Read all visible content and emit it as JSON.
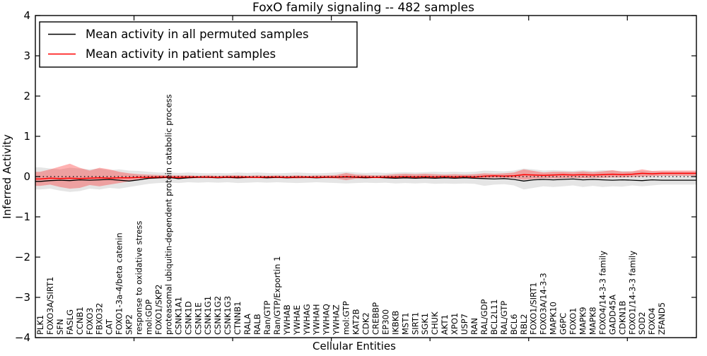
{
  "figure": {
    "kind": "matplotlib-style line plot with confidence bands"
  },
  "chart_data": {
    "type": "line",
    "title": "FoxO family signaling -- 482 samples",
    "xlabel": "Cellular Entities",
    "ylabel": "Inferred Activity",
    "ylim": [
      -4,
      4
    ],
    "xlim": [
      0,
      67
    ],
    "yticks": [
      -4,
      -3,
      -2,
      -1,
      0,
      1,
      2,
      3,
      4
    ],
    "xticks_major": [
      10,
      20,
      30,
      40,
      50,
      60
    ],
    "grid": false,
    "legend_position": "upper left",
    "zero_line_style": "dotted black at y=0",
    "categories": [
      "PLK1",
      "FOXO3A/SIRT1",
      "SFN",
      "FASLG",
      "CCNB1",
      "FOXO3",
      "FBXO32",
      "CAT",
      "FOXO1-3a-4/beta catenin",
      "SKP2",
      "response to oxidative stress",
      "mol:GDP",
      "FOXO1/SKP2",
      "proteasomal ubiquitin-dependent protein catabolic process",
      "CSNK1A1",
      "CSNK1D",
      "CSNK1E",
      "CSNK1G1",
      "CSNK1G2",
      "CSNK1G3",
      "CTNNB1",
      "RALA",
      "RALB",
      "Ran/GTP",
      "Ran/GTP/Exportin 1",
      "YWHAB",
      "YWHAE",
      "YWHAG",
      "YWHAH",
      "YWHAQ",
      "YWHAZ",
      "mol:GTP",
      "KAT2B",
      "CDK2",
      "CREBBP",
      "EP300",
      "IKBKB",
      "MST1",
      "SIRT1",
      "SGK1",
      "CHUK",
      "AKT1",
      "XPO1",
      "USP7",
      "RAN",
      "RAL/GDP",
      "BCL2L11",
      "RAL/GTP",
      "BCL6",
      "RBL2",
      "FOXO1/SIRT1",
      "FOXO3A/14-3-3",
      "MAPK10",
      "G6PC",
      "FOXO1",
      "MAPK9",
      "MAPK8",
      "FOXO4/14-3-3 family",
      "GADD45A",
      "CDKN1B",
      "FOXO1/14-3-3 family",
      "SOD2",
      "FOXO4",
      "ZFAND5"
    ],
    "series": [
      {
        "name": "Mean activity in all permuted samples",
        "color": "#000000",
        "band_color": "rgba(0,0,0,0.10)",
        "values": [
          -0.12,
          -0.1,
          -0.09,
          -0.1,
          -0.08,
          -0.09,
          -0.08,
          -0.07,
          -0.09,
          -0.11,
          -0.08,
          -0.04,
          -0.03,
          -0.02,
          -0.05,
          -0.03,
          -0.02,
          -0.02,
          -0.03,
          -0.02,
          -0.03,
          -0.02,
          -0.02,
          -0.03,
          -0.02,
          -0.03,
          -0.02,
          -0.02,
          -0.03,
          -0.02,
          -0.02,
          -0.01,
          -0.02,
          -0.03,
          -0.02,
          -0.03,
          -0.04,
          -0.03,
          -0.04,
          -0.03,
          -0.04,
          -0.03,
          -0.04,
          -0.03,
          -0.04,
          -0.05,
          -0.06,
          -0.05,
          -0.07,
          -0.11,
          -0.08,
          -0.07,
          -0.08,
          -0.07,
          -0.06,
          -0.08,
          -0.07,
          -0.08,
          -0.09,
          -0.08,
          -0.09,
          -0.1,
          -0.08,
          -0.09
        ],
        "band_upper": [
          0.23,
          0.2,
          0.18,
          0.22,
          0.2,
          0.18,
          0.2,
          0.16,
          0.18,
          0.15,
          0.14,
          0.12,
          0.1,
          0.1,
          0.09,
          0.1,
          0.09,
          0.08,
          0.09,
          0.08,
          0.1,
          0.09,
          0.1,
          0.09,
          0.08,
          0.09,
          0.1,
          0.09,
          0.08,
          0.09,
          0.1,
          0.12,
          0.1,
          0.09,
          0.1,
          0.09,
          0.1,
          0.11,
          0.1,
          0.11,
          0.12,
          0.11,
          0.12,
          0.11,
          0.12,
          0.15,
          0.14,
          0.13,
          0.15,
          0.2,
          0.18,
          0.15,
          0.16,
          0.15,
          0.14,
          0.16,
          0.14,
          0.16,
          0.15,
          0.14,
          0.13,
          0.14,
          0.13,
          0.12
        ],
        "band_lower": [
          -0.32,
          -0.3,
          -0.35,
          -0.38,
          -0.36,
          -0.3,
          -0.32,
          -0.28,
          -0.3,
          -0.26,
          -0.22,
          -0.18,
          -0.16,
          -0.15,
          -0.16,
          -0.14,
          -0.15,
          -0.14,
          -0.15,
          -0.14,
          -0.16,
          -0.15,
          -0.14,
          -0.15,
          -0.14,
          -0.15,
          -0.16,
          -0.15,
          -0.14,
          -0.15,
          -0.16,
          -0.17,
          -0.16,
          -0.15,
          -0.16,
          -0.15,
          -0.17,
          -0.16,
          -0.17,
          -0.16,
          -0.18,
          -0.17,
          -0.18,
          -0.17,
          -0.18,
          -0.23,
          -0.2,
          -0.19,
          -0.22,
          -0.32,
          -0.28,
          -0.24,
          -0.26,
          -0.24,
          -0.22,
          -0.26,
          -0.23,
          -0.26,
          -0.24,
          -0.25,
          -0.22,
          -0.24,
          -0.22,
          -0.2
        ]
      },
      {
        "name": "Mean activity in patient samples",
        "color": "#ff0000",
        "band_color": "rgba(255,0,0,0.30)",
        "values": [
          -0.06,
          -0.04,
          -0.05,
          -0.04,
          -0.05,
          -0.04,
          -0.03,
          -0.04,
          -0.03,
          -0.03,
          -0.02,
          -0.02,
          -0.01,
          -0.01,
          -0.02,
          -0.01,
          -0.01,
          -0.01,
          -0.02,
          -0.01,
          -0.01,
          -0.01,
          -0.02,
          -0.01,
          -0.01,
          -0.02,
          -0.01,
          -0.01,
          -0.02,
          -0.01,
          -0.01,
          0.0,
          -0.01,
          -0.01,
          -0.02,
          -0.01,
          -0.01,
          0.0,
          -0.01,
          0.0,
          -0.01,
          0.0,
          -0.01,
          0.0,
          -0.01,
          0.01,
          0.02,
          0.01,
          0.02,
          0.05,
          0.04,
          0.03,
          0.04,
          0.05,
          0.04,
          0.05,
          0.04,
          0.05,
          0.06,
          0.05,
          0.06,
          0.08,
          0.07,
          0.08
        ],
        "band_upper": [
          0.12,
          0.18,
          0.25,
          0.32,
          0.22,
          0.15,
          0.22,
          0.18,
          0.12,
          0.08,
          0.06,
          0.05,
          0.04,
          0.03,
          0.03,
          0.03,
          0.02,
          0.03,
          0.02,
          0.03,
          0.03,
          0.02,
          0.03,
          0.02,
          0.03,
          0.02,
          0.03,
          0.02,
          0.03,
          0.03,
          0.04,
          0.09,
          0.05,
          0.04,
          0.03,
          0.04,
          0.06,
          0.07,
          0.06,
          0.07,
          0.06,
          0.05,
          0.06,
          0.05,
          0.06,
          0.08,
          0.07,
          0.08,
          0.1,
          0.18,
          0.14,
          0.1,
          0.12,
          0.12,
          0.11,
          0.13,
          0.11,
          0.13,
          0.16,
          0.12,
          0.13,
          0.18,
          0.14,
          0.15
        ],
        "band_lower": [
          -0.23,
          -0.2,
          -0.26,
          -0.3,
          -0.28,
          -0.21,
          -0.24,
          -0.2,
          -0.16,
          -0.12,
          -0.08,
          -0.06,
          -0.05,
          -0.04,
          -0.05,
          -0.04,
          -0.04,
          -0.04,
          -0.04,
          -0.04,
          -0.05,
          -0.04,
          -0.04,
          -0.04,
          -0.04,
          -0.04,
          -0.05,
          -0.04,
          -0.04,
          -0.04,
          -0.05,
          -0.09,
          -0.05,
          -0.04,
          -0.04,
          -0.04,
          -0.05,
          -0.05,
          -0.05,
          -0.05,
          -0.05,
          -0.04,
          -0.05,
          -0.04,
          -0.05,
          -0.04,
          -0.03,
          -0.03,
          -0.04,
          -0.08,
          -0.06,
          -0.04,
          -0.05,
          -0.04,
          -0.03,
          -0.04,
          -0.03,
          -0.03,
          -0.02,
          -0.02,
          -0.01,
          0.0,
          0.01,
          0.02
        ]
      }
    ]
  },
  "legend": {
    "items": [
      {
        "label": "Mean activity in all permuted samples",
        "color": "#000000"
      },
      {
        "label": "Mean activity in patient samples",
        "color": "#ff0000"
      }
    ]
  }
}
